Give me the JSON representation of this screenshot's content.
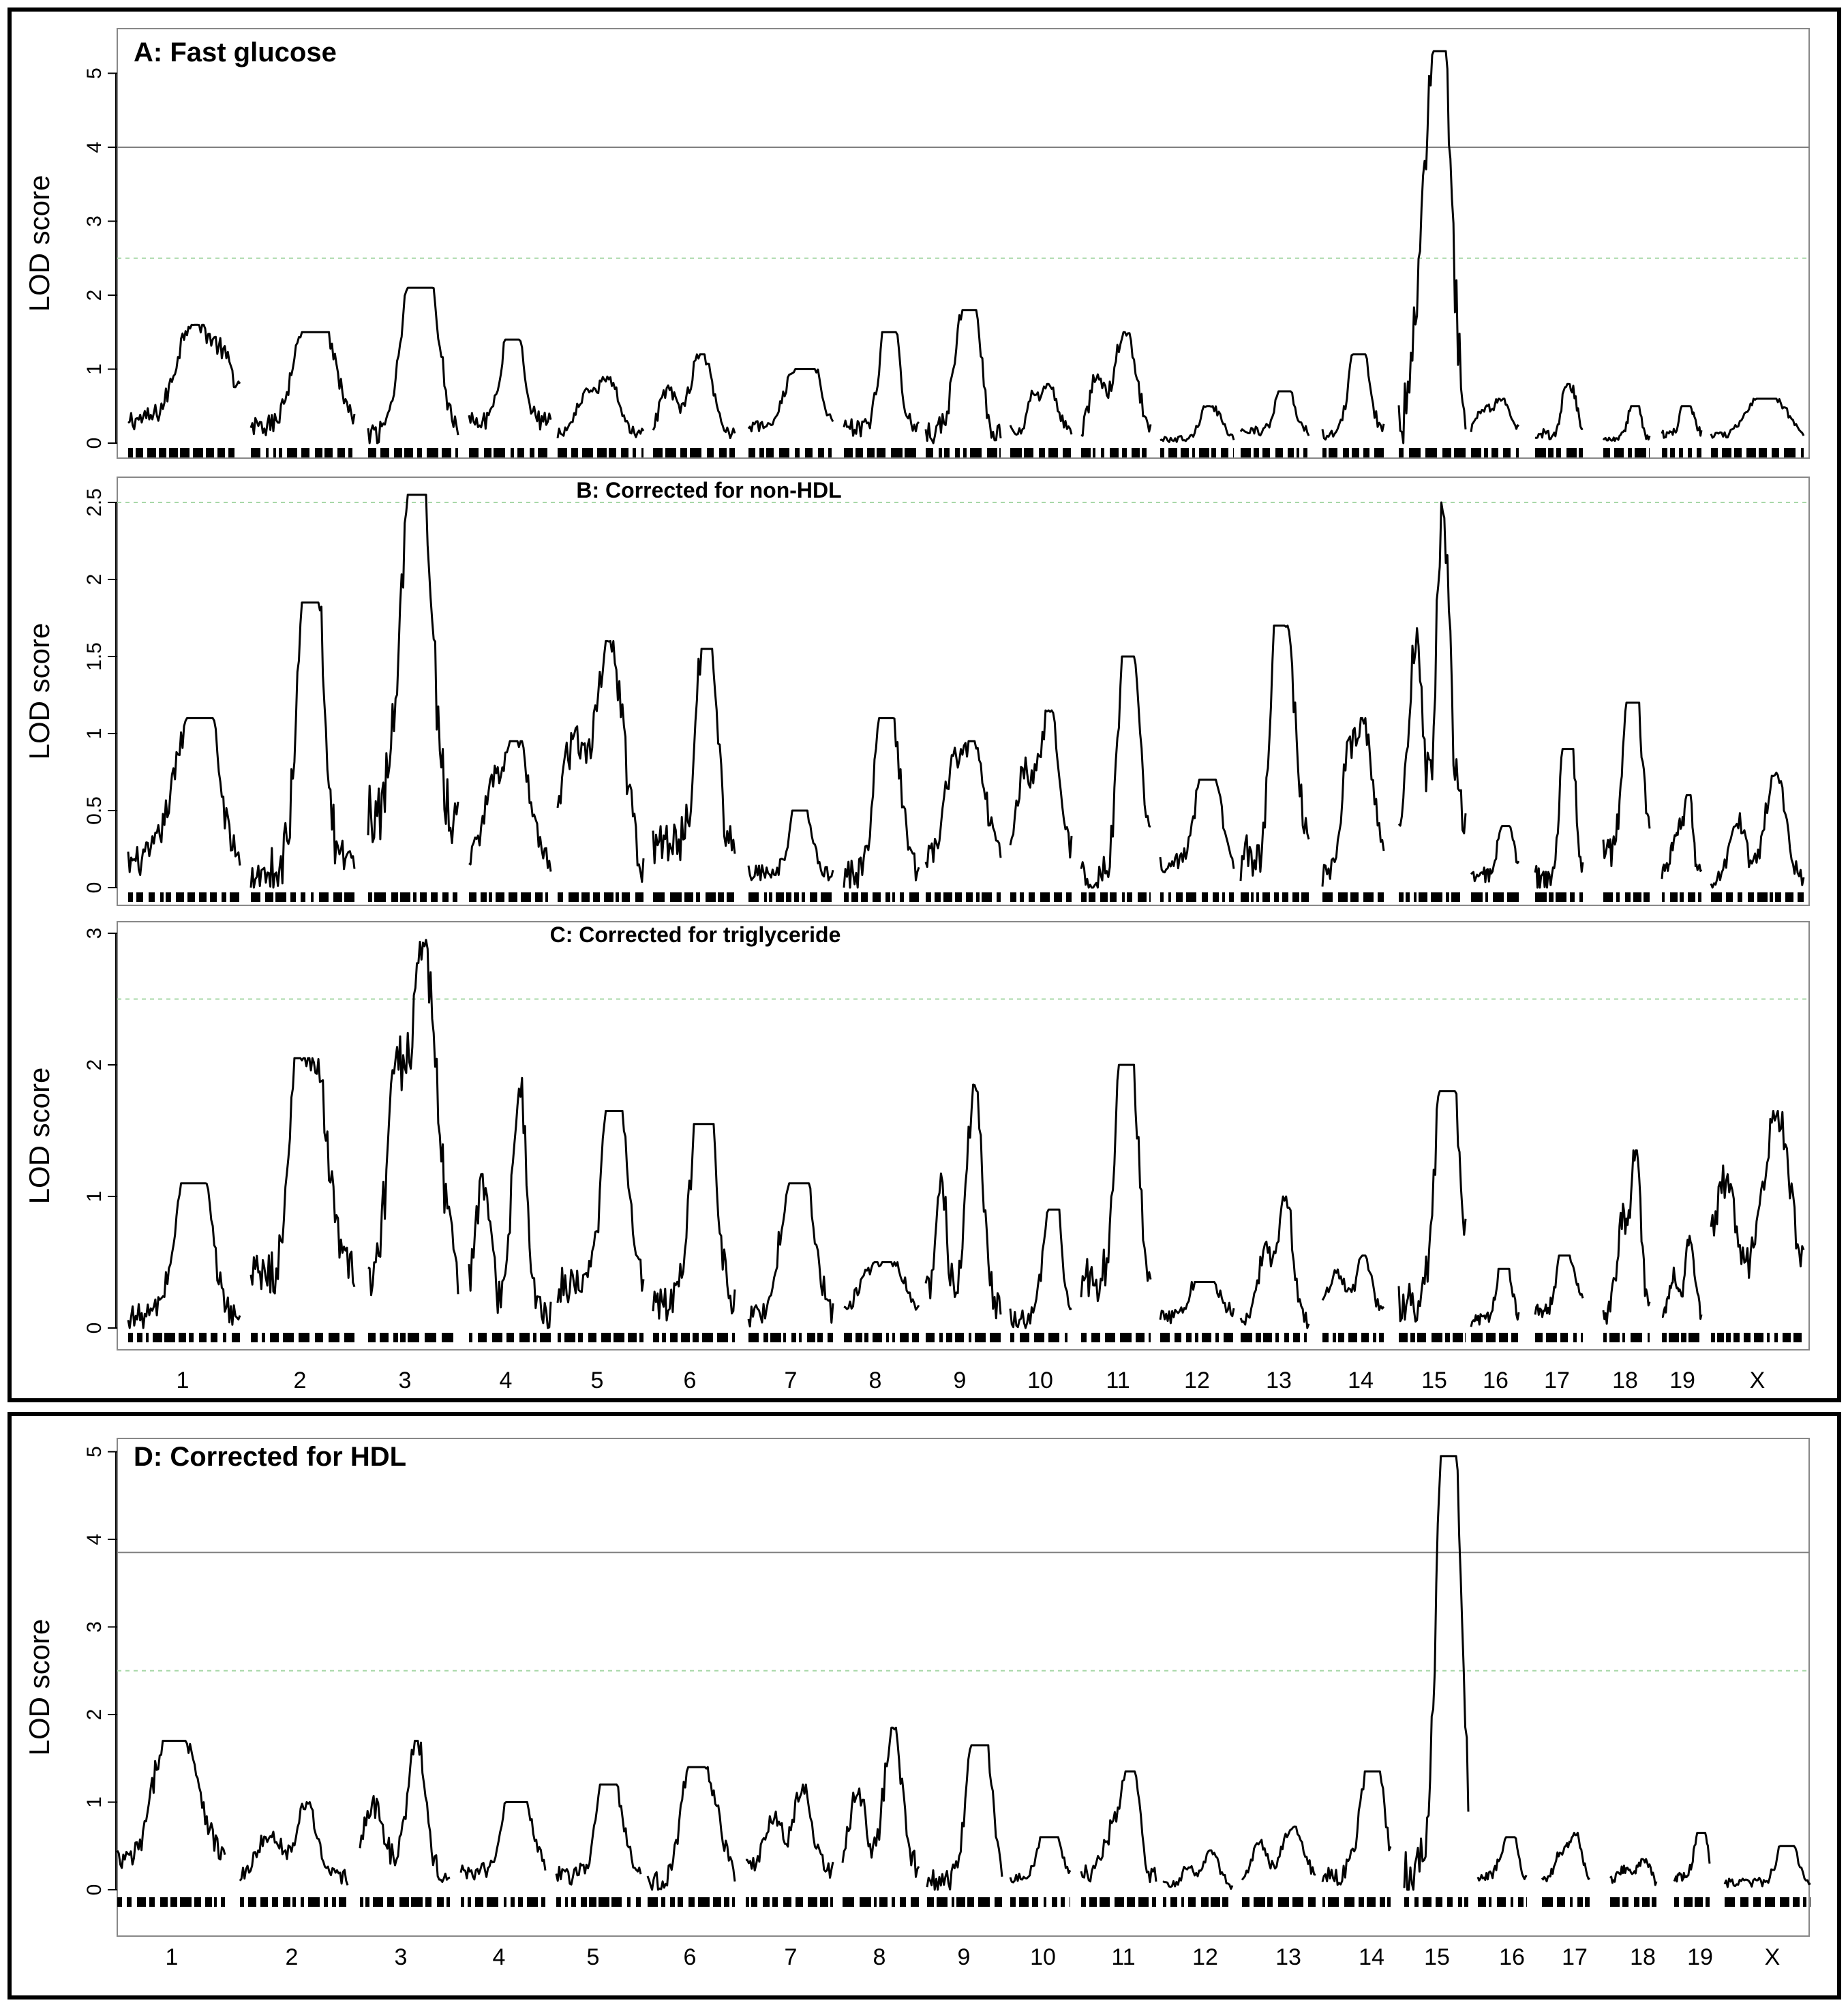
{
  "chart_data": [
    {
      "type": "line",
      "title": "A: Fast glucose",
      "ylabel": "LOD score",
      "xlabel": "",
      "ylim": [
        0,
        5.4
      ],
      "yticks": [
        "0",
        "1",
        "2",
        "3",
        "4",
        "5"
      ],
      "threshold_solid": 4.0,
      "threshold_dashed": 2.5,
      "chromosomes": [
        "1",
        "2",
        "3",
        "4",
        "5",
        "6",
        "7",
        "8",
        "9",
        "10",
        "11",
        "12",
        "13",
        "14",
        "15",
        "16",
        "17",
        "18",
        "19",
        "X"
      ],
      "chromosome_peaks": [
        1.6,
        1.5,
        2.1,
        1.4,
        0.9,
        1.2,
        1.0,
        1.5,
        1.8,
        0.8,
        1.5,
        0.5,
        0.7,
        1.2,
        5.3,
        0.6,
        0.8,
        0.5,
        0.5,
        0.6
      ]
    },
    {
      "type": "line",
      "title": "B: Corrected for non-HDL",
      "ylabel": "LOD score",
      "xlabel": "",
      "ylim": [
        0,
        2.6
      ],
      "yticks": [
        "0",
        "0.5",
        "1",
        "1.5",
        "2",
        "2.5"
      ],
      "threshold_dashed": 2.5,
      "chromosomes": [
        "1",
        "2",
        "3",
        "4",
        "5",
        "6",
        "7",
        "8",
        "9",
        "10",
        "11",
        "12",
        "13",
        "14",
        "15",
        "16",
        "17",
        "18",
        "19",
        "X"
      ],
      "chromosome_peaks": [
        1.1,
        1.85,
        2.55,
        0.95,
        1.6,
        1.55,
        0.5,
        1.1,
        0.95,
        1.15,
        1.5,
        0.7,
        1.7,
        1.1,
        2.5,
        0.4,
        0.9,
        1.2,
        0.6,
        0.75
      ]
    },
    {
      "type": "line",
      "title": "C: Corrected for triglyceride",
      "ylabel": "LOD score",
      "xlabel": "",
      "ylim": [
        0,
        3.1
      ],
      "yticks": [
        "0",
        "1",
        "2",
        "3"
      ],
      "threshold_dashed": 2.5,
      "chromosomes": [
        "1",
        "2",
        "3",
        "4",
        "5",
        "6",
        "7",
        "8",
        "9",
        "10",
        "11",
        "12",
        "13",
        "14",
        "15",
        "16",
        "17",
        "18",
        "19",
        "X"
      ],
      "chromosome_peaks": [
        1.1,
        2.05,
        2.95,
        1.9,
        1.65,
        1.55,
        1.1,
        0.5,
        1.85,
        0.9,
        2.0,
        0.35,
        1.0,
        0.55,
        1.8,
        0.45,
        0.55,
        1.35,
        0.7,
        1.65
      ]
    },
    {
      "type": "line",
      "title": "D: Corrected for HDL",
      "ylabel": "LOD score",
      "xlabel": "",
      "ylim": [
        0,
        5.2
      ],
      "yticks": [
        "0",
        "1",
        "2",
        "3",
        "4",
        "5"
      ],
      "threshold_solid": 3.85,
      "threshold_dashed": 2.5,
      "chromosomes": [
        "1",
        "2",
        "3",
        "4",
        "5",
        "6",
        "7",
        "8",
        "9",
        "10",
        "11",
        "12",
        "13",
        "14",
        "15",
        "16",
        "17",
        "18",
        "19",
        "X"
      ],
      "chromosome_peaks": [
        1.7,
        1.0,
        1.7,
        1.0,
        1.2,
        1.4,
        1.2,
        1.85,
        1.65,
        0.6,
        1.35,
        0.45,
        0.75,
        1.35,
        4.95,
        0.6,
        0.65,
        0.35,
        0.65,
        0.5
      ]
    }
  ],
  "colors": {
    "line": "#000000",
    "threshold_solid": "#808080",
    "threshold_dashed": "#a8d8a8",
    "frame": "#000000",
    "panel_border": "#888888"
  }
}
